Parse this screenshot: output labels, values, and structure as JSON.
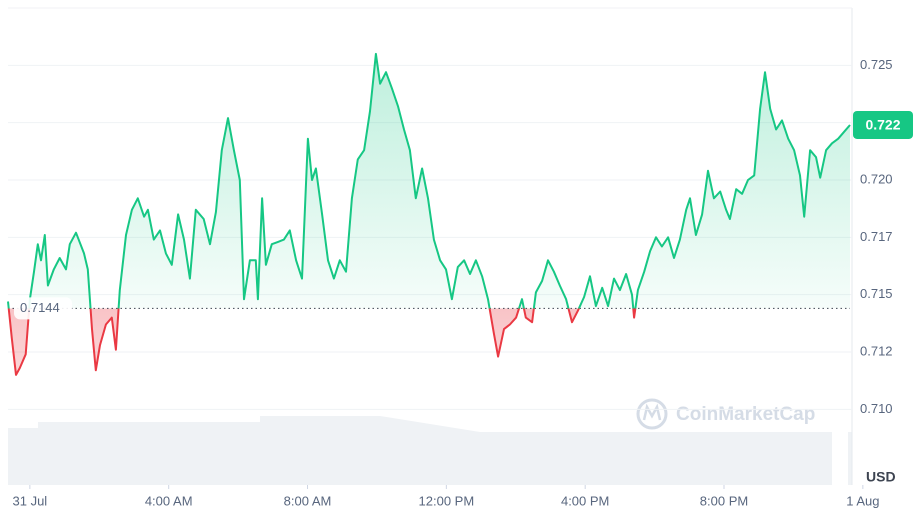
{
  "chart_data": {
    "type": "line",
    "watermark": "CoinMarketCap",
    "currency": "USD",
    "baseline": 0.7144,
    "baseline_label": "0.7144",
    "last_label": "0.722",
    "color_up": "#16c784",
    "color_down": "#ea3943",
    "grid": true,
    "xlim": [
      -0.63,
      23.63
    ],
    "ylim": [
      0.7067,
      0.7275
    ],
    "xticks": [
      {
        "value": 0,
        "label": "31 Jul"
      },
      {
        "value": 4,
        "label": "4:00 AM"
      },
      {
        "value": 8,
        "label": "8:00 AM"
      },
      {
        "value": 12,
        "label": "12:00 PM"
      },
      {
        "value": 16,
        "label": "4:00 PM"
      },
      {
        "value": 20,
        "label": "8:00 PM"
      },
      {
        "value": 24,
        "label": "1 Aug"
      }
    ],
    "yticks": [
      {
        "value": 0.71,
        "label": "0.710"
      },
      {
        "value": 0.7125,
        "label": "0.712"
      },
      0.715,
      {
        "value": 0.7175,
        "label": "0.717"
      },
      {
        "value": 0.72,
        "label": "0.720"
      },
      {
        "value": 0.7225,
        "label": "0.722"
      },
      0.725
    ],
    "x": [
      -0.63,
      -0.52,
      -0.4,
      -0.29,
      -0.12,
      0,
      0.12,
      0.23,
      0.32,
      0.43,
      0.52,
      0.69,
      0.86,
      1.04,
      1.15,
      1.33,
      1.56,
      1.67,
      1.79,
      1.9,
      2.02,
      2.19,
      2.36,
      2.48,
      2.59,
      2.77,
      2.94,
      3.11,
      3.29,
      3.4,
      3.57,
      3.75,
      3.92,
      4.09,
      4.27,
      4.44,
      4.61,
      4.78,
      5.01,
      5.19,
      5.36,
      5.53,
      5.71,
      5.88,
      6.05,
      6.17,
      6.34,
      6.51,
      6.57,
      6.69,
      6.8,
      6.97,
      7.15,
      7.32,
      7.49,
      7.67,
      7.84,
      8.01,
      8.13,
      8.24,
      8.42,
      8.59,
      8.76,
      8.93,
      9.11,
      9.28,
      9.45,
      9.63,
      9.8,
      9.97,
      10.09,
      10.26,
      10.43,
      10.61,
      10.78,
      10.95,
      11.12,
      11.3,
      11.47,
      11.64,
      11.82,
      11.99,
      12.16,
      12.33,
      12.51,
      12.68,
      12.85,
      13.03,
      13.2,
      13.37,
      13.49,
      13.66,
      13.83,
      14.01,
      14.18,
      14.29,
      14.47,
      14.58,
      14.76,
      14.93,
      15.1,
      15.27,
      15.45,
      15.62,
      15.79,
      15.97,
      16.14,
      16.31,
      16.49,
      16.66,
      16.83,
      17.0,
      17.18,
      17.35,
      17.41,
      17.52,
      17.7,
      17.87,
      18.04,
      18.21,
      18.39,
      18.56,
      18.73,
      18.91,
      19.02,
      19.19,
      19.37,
      19.54,
      19.71,
      19.89,
      20.06,
      20.17,
      20.35,
      20.52,
      20.69,
      20.87,
      21.04,
      21.18,
      21.33,
      21.5,
      21.67,
      21.85,
      22.02,
      22.19,
      22.31,
      22.48,
      22.65,
      22.77,
      22.94,
      23.11,
      23.29,
      23.46,
      23.63
    ],
    "values": [
      0.7147,
      0.7131,
      0.7115,
      0.7118,
      0.7124,
      0.7148,
      0.716,
      0.7172,
      0.7165,
      0.7176,
      0.7154,
      0.7161,
      0.7166,
      0.7161,
      0.7172,
      0.7177,
      0.7168,
      0.7161,
      0.7135,
      0.7117,
      0.7128,
      0.7137,
      0.714,
      0.7126,
      0.7152,
      0.7176,
      0.7187,
      0.7192,
      0.7184,
      0.7187,
      0.7174,
      0.7178,
      0.7168,
      0.7163,
      0.7185,
      0.7174,
      0.7157,
      0.7187,
      0.7183,
      0.7172,
      0.7186,
      0.7213,
      0.7227,
      0.7213,
      0.72,
      0.7148,
      0.7165,
      0.7165,
      0.7148,
      0.7192,
      0.7163,
      0.7172,
      0.7173,
      0.7174,
      0.7178,
      0.7165,
      0.7157,
      0.7218,
      0.72,
      0.7205,
      0.7185,
      0.7165,
      0.7157,
      0.7165,
      0.716,
      0.7192,
      0.7209,
      0.7213,
      0.723,
      0.7255,
      0.7242,
      0.7247,
      0.724,
      0.7232,
      0.7222,
      0.7213,
      0.7192,
      0.7205,
      0.7192,
      0.7174,
      0.7165,
      0.7161,
      0.7148,
      0.7162,
      0.7165,
      0.7159,
      0.7165,
      0.7158,
      0.7148,
      0.7133,
      0.7123,
      0.7135,
      0.7137,
      0.714,
      0.7148,
      0.714,
      0.7138,
      0.7151,
      0.7156,
      0.7165,
      0.716,
      0.7154,
      0.7148,
      0.7138,
      0.7143,
      0.7149,
      0.7158,
      0.7145,
      0.7153,
      0.7145,
      0.7157,
      0.7152,
      0.7159,
      0.715,
      0.714,
      0.7152,
      0.716,
      0.7169,
      0.7175,
      0.7171,
      0.7175,
      0.7166,
      0.7174,
      0.7187,
      0.7192,
      0.7176,
      0.7185,
      0.7204,
      0.7192,
      0.7195,
      0.7187,
      0.7183,
      0.7196,
      0.7194,
      0.72,
      0.7202,
      0.7231,
      0.7247,
      0.7231,
      0.7222,
      0.7226,
      0.7218,
      0.7213,
      0.7202,
      0.7184,
      0.7213,
      0.721,
      0.7201,
      0.7213,
      0.7216,
      0.7218,
      0.7221,
      0.7224
    ]
  }
}
